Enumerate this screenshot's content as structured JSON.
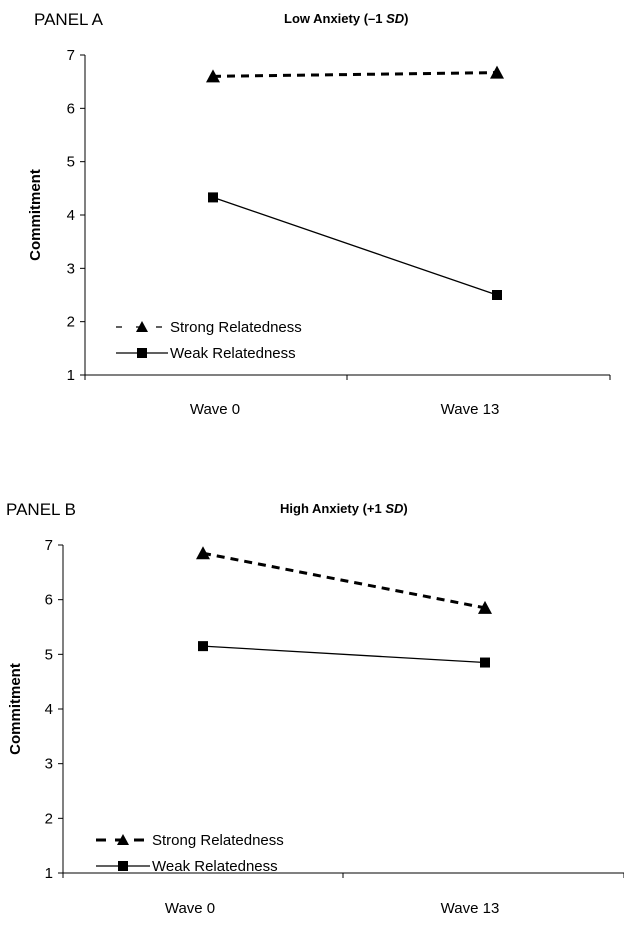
{
  "chart_data": [
    {
      "type": "line",
      "panel_label": "PANEL A",
      "title": "Low Anxiety (–1 ",
      "title_emph": "SD",
      "title_end": ")",
      "ylabel": "Commitment",
      "categories": [
        "Wave 0",
        "Wave 13"
      ],
      "yticks": [
        1,
        2,
        3,
        4,
        5,
        6,
        7
      ],
      "ylim": [
        1,
        7
      ],
      "series": [
        {
          "name": "Strong Relatedness",
          "values": [
            6.6,
            6.67
          ],
          "style": "dashed",
          "marker": "triangle"
        },
        {
          "name": "Weak Relatedness",
          "values": [
            4.33,
            2.5
          ],
          "style": "solid",
          "marker": "square"
        }
      ],
      "legend_position": "bottom-left"
    },
    {
      "type": "line",
      "panel_label": "PANEL B",
      "title": "High Anxiety (+1 ",
      "title_emph": "SD",
      "title_end": ")",
      "ylabel": "Commitment",
      "categories": [
        "Wave 0",
        "Wave 13"
      ],
      "yticks": [
        1,
        2,
        3,
        4,
        5,
        6,
        7
      ],
      "ylim": [
        1,
        7
      ],
      "series": [
        {
          "name": "Strong Relatedness",
          "values": [
            6.85,
            5.85
          ],
          "style": "dashed",
          "marker": "triangle"
        },
        {
          "name": "Weak Relatedness",
          "values": [
            5.15,
            4.85
          ],
          "style": "solid",
          "marker": "square"
        }
      ],
      "legend_position": "bottom-left"
    }
  ],
  "colors": {
    "line": "#000000",
    "background": "#ffffff"
  }
}
